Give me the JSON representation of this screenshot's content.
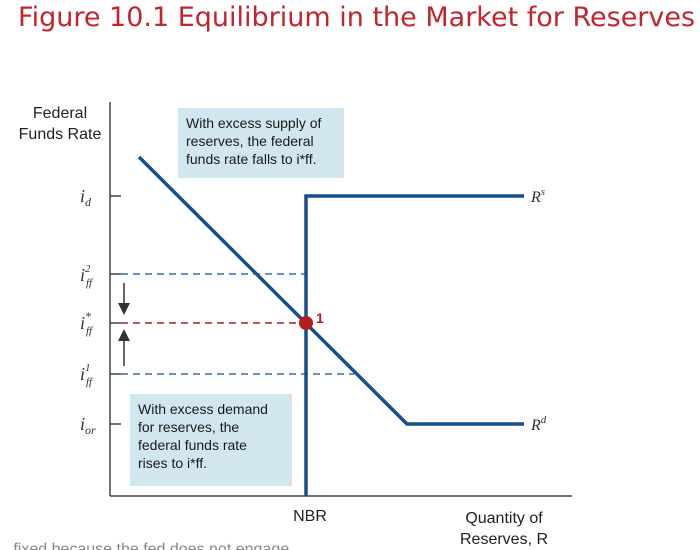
{
  "figure": {
    "title": "Figure 10.1 Equilibrium in the Market for Reserves"
  },
  "axes": {
    "y_label_lines": [
      "Federal",
      "Funds Rate"
    ],
    "x_label_lines": [
      "Quantity of",
      "Reserves, R"
    ],
    "x_tick_nbr": "NBR"
  },
  "rates": {
    "id": {
      "base": "i",
      "sub": "d",
      "sup": ""
    },
    "iff2": {
      "base": "i",
      "sub": "ff",
      "sup": "2"
    },
    "iffstar": {
      "base": "i",
      "sub": "ff",
      "sup": "*"
    },
    "iff1": {
      "base": "i",
      "sub": "ff",
      "sup": "1"
    },
    "ior": {
      "base": "i",
      "sub": "or",
      "sup": ""
    }
  },
  "curves": {
    "supply": {
      "base": "R",
      "sup": "s"
    },
    "demand": {
      "base": "R",
      "sup": "d"
    }
  },
  "equilibrium": {
    "label": "1"
  },
  "annotations": {
    "excess_supply_lines": [
      "With excess supply of",
      "reserves, the federal",
      "funds rate falls to i*ff."
    ],
    "excess_demand_lines": [
      "With excess demand",
      "for reserves, the",
      "federal funds rate",
      "rises to i*ff."
    ]
  },
  "colors": {
    "curve": "#14508c",
    "equilibrium_dot": "#b0201e",
    "dash_blue": "#3b6ea5",
    "dash_red": "#b0201e",
    "note_bg": "#d2e6ef",
    "title": "#c0262c"
  },
  "footer_fragment": "...fixed because the fed does not engage..."
}
